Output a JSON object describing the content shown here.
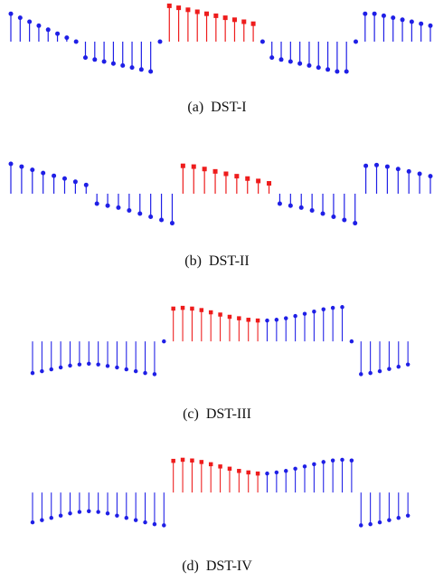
{
  "colors": {
    "base": "#1f1fe6",
    "highlight": "#ee1c1c"
  },
  "panels": [
    {
      "caption": "(a)  DST-I",
      "baseline_marks": "dot",
      "samples": [
        {
          "v": 0.7,
          "c": "base",
          "m": "dot"
        },
        {
          "v": 0.6,
          "c": "base",
          "m": "dot"
        },
        {
          "v": 0.5,
          "c": "base",
          "m": "dot"
        },
        {
          "v": 0.4,
          "c": "base",
          "m": "dot"
        },
        {
          "v": 0.3,
          "c": "base",
          "m": "dot"
        },
        {
          "v": 0.2,
          "c": "base",
          "m": "dot"
        },
        {
          "v": 0.1,
          "c": "base",
          "m": "dot"
        },
        {
          "v": 0,
          "c": "base",
          "m": "dot"
        },
        {
          "v": -0.4,
          "c": "base",
          "m": "dot"
        },
        {
          "v": -0.45,
          "c": "base",
          "m": "dot"
        },
        {
          "v": -0.5,
          "c": "base",
          "m": "dot"
        },
        {
          "v": -0.55,
          "c": "base",
          "m": "dot"
        },
        {
          "v": -0.6,
          "c": "base",
          "m": "dot"
        },
        {
          "v": -0.65,
          "c": "base",
          "m": "dot"
        },
        {
          "v": -0.7,
          "c": "base",
          "m": "dot"
        },
        {
          "v": -0.75,
          "c": "base",
          "m": "dot"
        },
        {
          "v": 0,
          "c": "base",
          "m": "dot"
        },
        {
          "v": 0.9,
          "c": "highlight",
          "m": "square"
        },
        {
          "v": 0.85,
          "c": "highlight",
          "m": "square"
        },
        {
          "v": 0.8,
          "c": "highlight",
          "m": "square"
        },
        {
          "v": 0.75,
          "c": "highlight",
          "m": "square"
        },
        {
          "v": 0.7,
          "c": "highlight",
          "m": "square"
        },
        {
          "v": 0.65,
          "c": "highlight",
          "m": "square"
        },
        {
          "v": 0.6,
          "c": "highlight",
          "m": "square"
        },
        {
          "v": 0.55,
          "c": "highlight",
          "m": "square"
        },
        {
          "v": 0.5,
          "c": "highlight",
          "m": "square"
        },
        {
          "v": 0.45,
          "c": "highlight",
          "m": "square"
        },
        {
          "v": 0,
          "c": "base",
          "m": "dot"
        },
        {
          "v": -0.4,
          "c": "base",
          "m": "dot"
        },
        {
          "v": -0.45,
          "c": "base",
          "m": "dot"
        },
        {
          "v": -0.5,
          "c": "base",
          "m": "dot"
        },
        {
          "v": -0.55,
          "c": "base",
          "m": "dot"
        },
        {
          "v": -0.6,
          "c": "base",
          "m": "dot"
        },
        {
          "v": -0.65,
          "c": "base",
          "m": "dot"
        },
        {
          "v": -0.7,
          "c": "base",
          "m": "dot"
        },
        {
          "v": -0.75,
          "c": "base",
          "m": "dot"
        },
        {
          "v": -0.75,
          "c": "base",
          "m": "dot"
        },
        {
          "v": 0,
          "c": "base",
          "m": "dot"
        },
        {
          "v": 0.7,
          "c": "base",
          "m": "dot"
        },
        {
          "v": 0.7,
          "c": "base",
          "m": "dot"
        },
        {
          "v": 0.65,
          "c": "base",
          "m": "dot"
        },
        {
          "v": 0.6,
          "c": "base",
          "m": "dot"
        },
        {
          "v": 0.55,
          "c": "base",
          "m": "dot"
        },
        {
          "v": 0.5,
          "c": "base",
          "m": "dot"
        },
        {
          "v": 0.45,
          "c": "base",
          "m": "dot"
        },
        {
          "v": 0.4,
          "c": "base",
          "m": "dot"
        }
      ]
    },
    {
      "caption": "(b)  DST-II",
      "samples": [
        {
          "v": 0.75,
          "c": "base",
          "m": "dot"
        },
        {
          "v": 0.68,
          "c": "base",
          "m": "dot"
        },
        {
          "v": 0.6,
          "c": "base",
          "m": "dot"
        },
        {
          "v": 0.52,
          "c": "base",
          "m": "dot"
        },
        {
          "v": 0.45,
          "c": "base",
          "m": "dot"
        },
        {
          "v": 0.38,
          "c": "base",
          "m": "dot"
        },
        {
          "v": 0.3,
          "c": "base",
          "m": "dot"
        },
        {
          "v": 0.22,
          "c": "base",
          "m": "dot"
        },
        {
          "v": -0.25,
          "c": "base",
          "m": "dot"
        },
        {
          "v": -0.3,
          "c": "base",
          "m": "dot"
        },
        {
          "v": -0.35,
          "c": "base",
          "m": "dot"
        },
        {
          "v": -0.42,
          "c": "base",
          "m": "dot"
        },
        {
          "v": -0.5,
          "c": "base",
          "m": "dot"
        },
        {
          "v": -0.58,
          "c": "base",
          "m": "dot"
        },
        {
          "v": -0.66,
          "c": "base",
          "m": "dot"
        },
        {
          "v": -0.74,
          "c": "base",
          "m": "dot"
        },
        {
          "v": 0.7,
          "c": "highlight",
          "m": "square"
        },
        {
          "v": 0.68,
          "c": "highlight",
          "m": "square"
        },
        {
          "v": 0.62,
          "c": "highlight",
          "m": "square"
        },
        {
          "v": 0.56,
          "c": "highlight",
          "m": "square"
        },
        {
          "v": 0.5,
          "c": "highlight",
          "m": "square"
        },
        {
          "v": 0.44,
          "c": "highlight",
          "m": "square"
        },
        {
          "v": 0.38,
          "c": "highlight",
          "m": "square"
        },
        {
          "v": 0.32,
          "c": "highlight",
          "m": "square"
        },
        {
          "v": 0.26,
          "c": "highlight",
          "m": "square"
        },
        {
          "v": -0.25,
          "c": "base",
          "m": "dot"
        },
        {
          "v": -0.3,
          "c": "base",
          "m": "dot"
        },
        {
          "v": -0.35,
          "c": "base",
          "m": "dot"
        },
        {
          "v": -0.42,
          "c": "base",
          "m": "dot"
        },
        {
          "v": -0.5,
          "c": "base",
          "m": "dot"
        },
        {
          "v": -0.58,
          "c": "base",
          "m": "dot"
        },
        {
          "v": -0.66,
          "c": "base",
          "m": "dot"
        },
        {
          "v": -0.74,
          "c": "base",
          "m": "dot"
        },
        {
          "v": 0.7,
          "c": "base",
          "m": "dot"
        },
        {
          "v": 0.72,
          "c": "base",
          "m": "dot"
        },
        {
          "v": 0.68,
          "c": "base",
          "m": "dot"
        },
        {
          "v": 0.62,
          "c": "base",
          "m": "dot"
        },
        {
          "v": 0.56,
          "c": "base",
          "m": "dot"
        },
        {
          "v": 0.5,
          "c": "base",
          "m": "dot"
        },
        {
          "v": 0.44,
          "c": "base",
          "m": "dot"
        }
      ]
    },
    {
      "caption": "(c)  DST-III",
      "samples": [
        {
          "v": -0.85,
          "c": "base",
          "m": "dot"
        },
        {
          "v": -0.8,
          "c": "base",
          "m": "dot"
        },
        {
          "v": -0.75,
          "c": "base",
          "m": "dot"
        },
        {
          "v": -0.7,
          "c": "base",
          "m": "dot"
        },
        {
          "v": -0.65,
          "c": "base",
          "m": "dot"
        },
        {
          "v": -0.62,
          "c": "base",
          "m": "dot"
        },
        {
          "v": -0.6,
          "c": "base",
          "m": "dot"
        },
        {
          "v": -0.62,
          "c": "base",
          "m": "dot"
        },
        {
          "v": -0.66,
          "c": "base",
          "m": "dot"
        },
        {
          "v": -0.7,
          "c": "base",
          "m": "dot"
        },
        {
          "v": -0.75,
          "c": "base",
          "m": "dot"
        },
        {
          "v": -0.8,
          "c": "base",
          "m": "dot"
        },
        {
          "v": -0.85,
          "c": "base",
          "m": "dot"
        },
        {
          "v": -0.88,
          "c": "base",
          "m": "dot"
        },
        {
          "v": 0,
          "c": "base",
          "m": "dot"
        },
        {
          "v": 0.88,
          "c": "highlight",
          "m": "square"
        },
        {
          "v": 0.9,
          "c": "highlight",
          "m": "square"
        },
        {
          "v": 0.88,
          "c": "highlight",
          "m": "square"
        },
        {
          "v": 0.84,
          "c": "highlight",
          "m": "square"
        },
        {
          "v": 0.78,
          "c": "highlight",
          "m": "square"
        },
        {
          "v": 0.72,
          "c": "highlight",
          "m": "square"
        },
        {
          "v": 0.66,
          "c": "highlight",
          "m": "square"
        },
        {
          "v": 0.62,
          "c": "highlight",
          "m": "square"
        },
        {
          "v": 0.58,
          "c": "highlight",
          "m": "square"
        },
        {
          "v": 0.56,
          "c": "highlight",
          "m": "square"
        },
        {
          "v": 0.56,
          "c": "base",
          "m": "dot"
        },
        {
          "v": 0.58,
          "c": "base",
          "m": "dot"
        },
        {
          "v": 0.62,
          "c": "base",
          "m": "dot"
        },
        {
          "v": 0.68,
          "c": "base",
          "m": "dot"
        },
        {
          "v": 0.74,
          "c": "base",
          "m": "dot"
        },
        {
          "v": 0.8,
          "c": "base",
          "m": "dot"
        },
        {
          "v": 0.86,
          "c": "base",
          "m": "dot"
        },
        {
          "v": 0.9,
          "c": "base",
          "m": "dot"
        },
        {
          "v": 0.92,
          "c": "base",
          "m": "dot"
        },
        {
          "v": 0,
          "c": "base",
          "m": "dot"
        },
        {
          "v": -0.88,
          "c": "base",
          "m": "dot"
        },
        {
          "v": -0.85,
          "c": "base",
          "m": "dot"
        },
        {
          "v": -0.8,
          "c": "base",
          "m": "dot"
        },
        {
          "v": -0.74,
          "c": "base",
          "m": "dot"
        },
        {
          "v": -0.68,
          "c": "base",
          "m": "dot"
        },
        {
          "v": -0.62,
          "c": "base",
          "m": "dot"
        }
      ]
    },
    {
      "caption": "(d)  DST-IV",
      "samples": [
        {
          "v": -0.8,
          "c": "base",
          "m": "dot"
        },
        {
          "v": -0.74,
          "c": "base",
          "m": "dot"
        },
        {
          "v": -0.68,
          "c": "base",
          "m": "dot"
        },
        {
          "v": -0.62,
          "c": "base",
          "m": "dot"
        },
        {
          "v": -0.56,
          "c": "base",
          "m": "dot"
        },
        {
          "v": -0.52,
          "c": "base",
          "m": "dot"
        },
        {
          "v": -0.5,
          "c": "base",
          "m": "dot"
        },
        {
          "v": -0.52,
          "c": "base",
          "m": "dot"
        },
        {
          "v": -0.56,
          "c": "base",
          "m": "dot"
        },
        {
          "v": -0.62,
          "c": "base",
          "m": "dot"
        },
        {
          "v": -0.68,
          "c": "base",
          "m": "dot"
        },
        {
          "v": -0.74,
          "c": "base",
          "m": "dot"
        },
        {
          "v": -0.8,
          "c": "base",
          "m": "dot"
        },
        {
          "v": -0.85,
          "c": "base",
          "m": "dot"
        },
        {
          "v": -0.88,
          "c": "base",
          "m": "dot"
        },
        {
          "v": 0.85,
          "c": "highlight",
          "m": "square"
        },
        {
          "v": 0.88,
          "c": "highlight",
          "m": "square"
        },
        {
          "v": 0.86,
          "c": "highlight",
          "m": "square"
        },
        {
          "v": 0.82,
          "c": "highlight",
          "m": "square"
        },
        {
          "v": 0.76,
          "c": "highlight",
          "m": "square"
        },
        {
          "v": 0.7,
          "c": "highlight",
          "m": "square"
        },
        {
          "v": 0.64,
          "c": "highlight",
          "m": "square"
        },
        {
          "v": 0.58,
          "c": "highlight",
          "m": "square"
        },
        {
          "v": 0.54,
          "c": "highlight",
          "m": "square"
        },
        {
          "v": 0.51,
          "c": "highlight",
          "m": "square"
        },
        {
          "v": 0.51,
          "c": "base",
          "m": "dot"
        },
        {
          "v": 0.54,
          "c": "base",
          "m": "dot"
        },
        {
          "v": 0.58,
          "c": "base",
          "m": "dot"
        },
        {
          "v": 0.64,
          "c": "base",
          "m": "dot"
        },
        {
          "v": 0.7,
          "c": "base",
          "m": "dot"
        },
        {
          "v": 0.76,
          "c": "base",
          "m": "dot"
        },
        {
          "v": 0.82,
          "c": "base",
          "m": "dot"
        },
        {
          "v": 0.86,
          "c": "base",
          "m": "dot"
        },
        {
          "v": 0.88,
          "c": "base",
          "m": "dot"
        },
        {
          "v": 0.86,
          "c": "base",
          "m": "dot"
        },
        {
          "v": -0.88,
          "c": "base",
          "m": "dot"
        },
        {
          "v": -0.85,
          "c": "base",
          "m": "dot"
        },
        {
          "v": -0.8,
          "c": "base",
          "m": "dot"
        },
        {
          "v": -0.74,
          "c": "base",
          "m": "dot"
        },
        {
          "v": -0.68,
          "c": "base",
          "m": "dot"
        },
        {
          "v": -0.62,
          "c": "base",
          "m": "dot"
        }
      ]
    }
  ]
}
